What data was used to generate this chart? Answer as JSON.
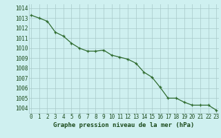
{
  "x": [
    0,
    1,
    2,
    3,
    4,
    5,
    6,
    7,
    8,
    9,
    10,
    11,
    12,
    13,
    14,
    15,
    16,
    17,
    18,
    19,
    20,
    21,
    22,
    23
  ],
  "y": [
    1013.3,
    1013.0,
    1012.7,
    1011.6,
    1011.2,
    1010.5,
    1010.0,
    1009.7,
    1009.7,
    1009.8,
    1009.3,
    1009.1,
    1008.9,
    1008.5,
    1007.6,
    1007.1,
    1006.1,
    1005.0,
    1005.0,
    1004.6,
    1004.3,
    1004.3,
    1004.3,
    1003.8
  ],
  "line_color": "#2d6a2d",
  "marker": "+",
  "bg_color": "#cff0f0",
  "grid_color": "#a8c8c8",
  "title": "Graphe pression niveau de la mer (hPa)",
  "xlabel_tick_labels": [
    "0",
    "1",
    "2",
    "3",
    "4",
    "5",
    "6",
    "7",
    "8",
    "9",
    "10",
    "11",
    "12",
    "13",
    "14",
    "15",
    "16",
    "17",
    "18",
    "19",
    "20",
    "21",
    "22",
    "23"
  ],
  "ytick_labels": [
    "1004",
    "1005",
    "1006",
    "1007",
    "1008",
    "1009",
    "1010",
    "1011",
    "1012",
    "1013",
    "1014"
  ],
  "ytick_values": [
    1004,
    1005,
    1006,
    1007,
    1008,
    1009,
    1010,
    1011,
    1012,
    1013,
    1014
  ],
  "ylim": [
    1003.5,
    1014.4
  ],
  "xlim": [
    -0.3,
    23.3
  ],
  "title_color": "#1a4a1a",
  "title_fontsize": 6.5,
  "tick_fontsize": 5.5,
  "line_width": 0.9,
  "marker_size": 3.0,
  "marker_edge_width": 0.9
}
